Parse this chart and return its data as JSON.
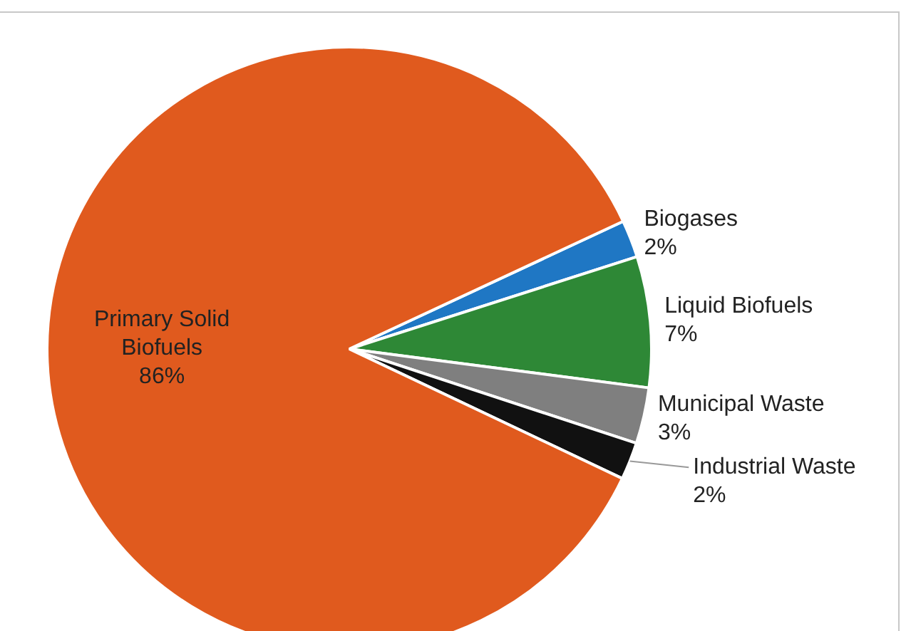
{
  "chart_data": {
    "type": "pie",
    "categories": [
      "Biogases",
      "Liquid Biofuels",
      "Municipal Waste",
      "Industrial Waste",
      "Primary Solid Biofuels"
    ],
    "values": [
      2,
      7,
      3,
      2,
      86
    ],
    "colors": [
      "#1f77c4",
      "#2e8836",
      "#7f7f7f",
      "#111111",
      "#e05a1e"
    ],
    "value_labels": [
      "2%",
      "7%",
      "3%",
      "2%",
      "86%"
    ],
    "legend": false
  }
}
